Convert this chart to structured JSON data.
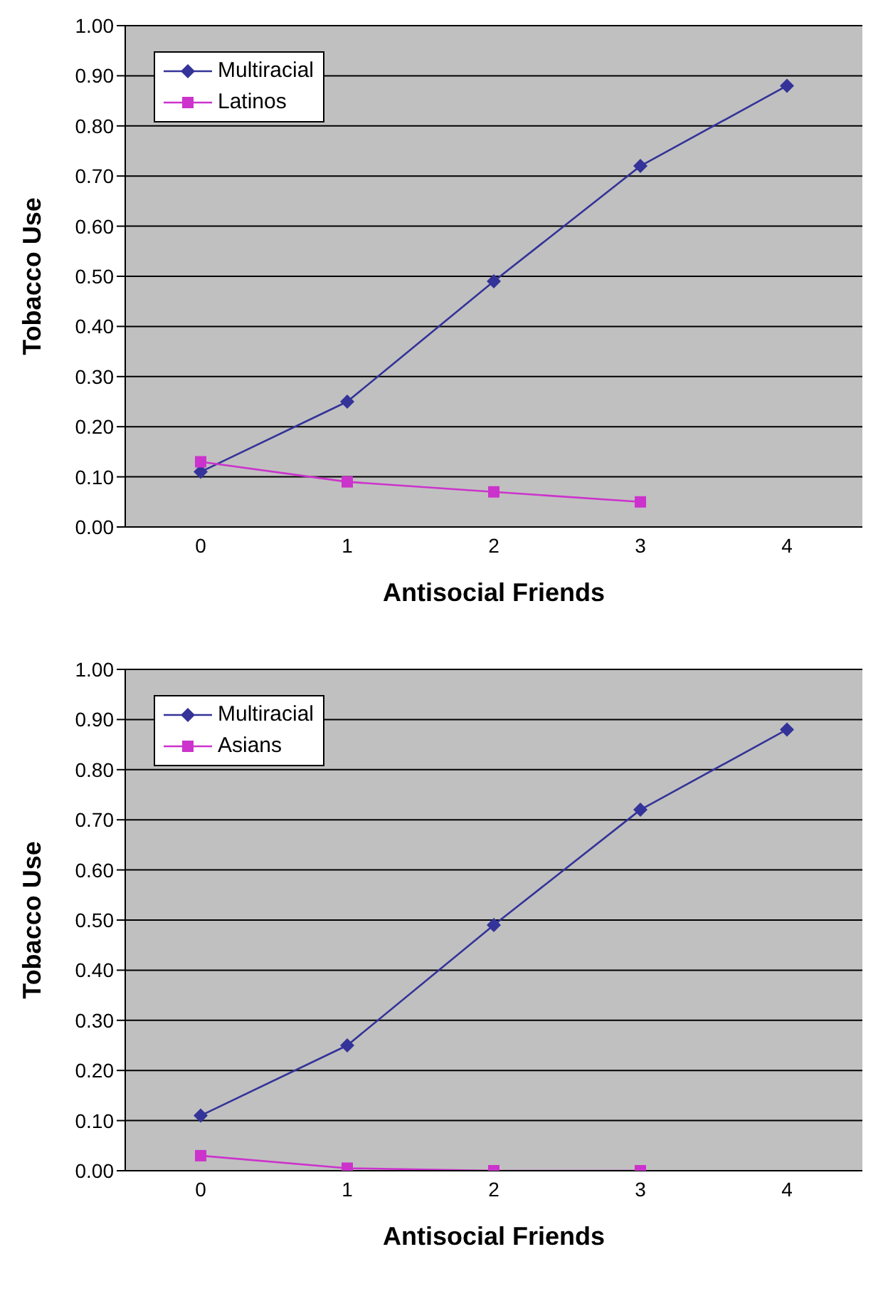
{
  "chart_data": [
    {
      "type": "line",
      "xlabel": "Antisocial Friends",
      "ylabel": "Tobacco Use",
      "categories": [
        "0",
        "1",
        "2",
        "3",
        "4"
      ],
      "ylim": [
        0,
        1
      ],
      "yticks": [
        {
          "value": 0,
          "label": "0.00"
        },
        {
          "value": 0.1,
          "label": "0.10"
        },
        {
          "value": 0.2,
          "label": "0.20"
        },
        {
          "value": 0.3,
          "label": "0.30"
        },
        {
          "value": 0.4,
          "label": "0.40"
        },
        {
          "value": 0.5,
          "label": "0.50"
        },
        {
          "value": 0.6,
          "label": "0.60"
        },
        {
          "value": 0.7,
          "label": "0.70"
        },
        {
          "value": 0.8,
          "label": "0.80"
        },
        {
          "value": 0.9,
          "label": "0.90"
        },
        {
          "value": 1,
          "label": "1.00"
        }
      ],
      "grid": "y",
      "legend": "top left",
      "series": [
        {
          "name": "Multiracial",
          "color": "#333399",
          "marker": "diamond",
          "values": [
            0.11,
            0.25,
            0.49,
            0.72,
            0.88
          ]
        },
        {
          "name": "Latinos",
          "color": "#cc33cc",
          "marker": "square",
          "values": [
            0.13,
            0.09,
            0.07,
            0.05,
            null
          ]
        }
      ]
    },
    {
      "type": "line",
      "xlabel": "Antisocial Friends",
      "ylabel": "Tobacco Use",
      "categories": [
        "0",
        "1",
        "2",
        "3",
        "4"
      ],
      "ylim": [
        0,
        1
      ],
      "yticks": [
        {
          "value": 0,
          "label": "0.00"
        },
        {
          "value": 0.1,
          "label": "0.10"
        },
        {
          "value": 0.2,
          "label": "0.20"
        },
        {
          "value": 0.3,
          "label": "0.30"
        },
        {
          "value": 0.4,
          "label": "0.40"
        },
        {
          "value": 0.5,
          "label": "0.50"
        },
        {
          "value": 0.6,
          "label": "0.60"
        },
        {
          "value": 0.7,
          "label": "0.70"
        },
        {
          "value": 0.8,
          "label": "0.80"
        },
        {
          "value": 0.9,
          "label": "0.90"
        },
        {
          "value": 1,
          "label": "1.00"
        }
      ],
      "grid": "y",
      "legend": "top left",
      "series": [
        {
          "name": "Multiracial",
          "color": "#333399",
          "marker": "diamond",
          "values": [
            0.11,
            0.25,
            0.49,
            0.72,
            0.88
          ]
        },
        {
          "name": "Asians",
          "color": "#cc33cc",
          "marker": "square",
          "values": [
            0.03,
            0.005,
            0,
            0,
            null
          ]
        }
      ]
    }
  ]
}
